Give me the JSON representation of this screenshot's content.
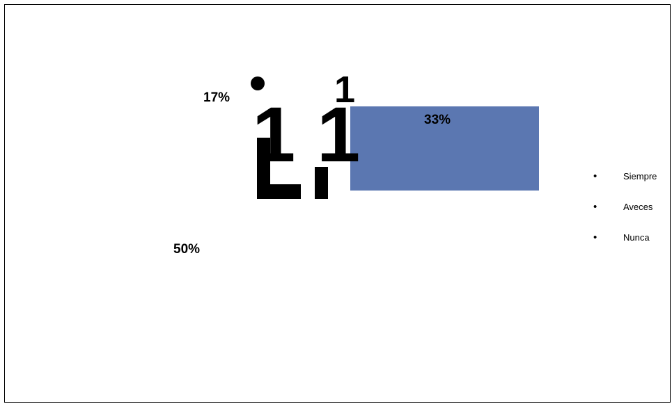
{
  "chart_data": {
    "type": "pie",
    "categories": [
      "Siempre",
      "Aveces",
      "Nunca"
    ],
    "values": [
      17,
      33,
      50
    ],
    "data_labels": [
      "17%",
      "33%",
      "50%"
    ],
    "legend": {
      "entries": [
        "Siempre",
        "Aveces",
        "Nunca"
      ],
      "placement": "right"
    },
    "glyph_text": "1",
    "colors": {
      "highlight_slice": "#5b77b1",
      "text": "#000000",
      "border": "#000000",
      "background": "#ffffff"
    }
  }
}
